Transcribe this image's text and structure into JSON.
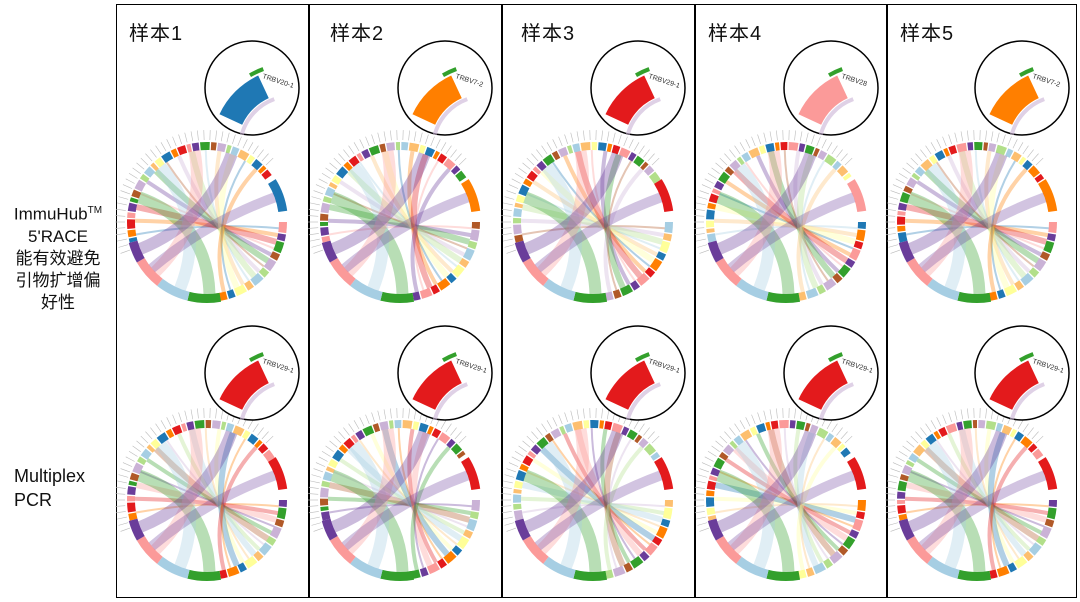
{
  "panels": [
    {
      "title": "样本1",
      "top_zoom_label": "TRBV20-1",
      "bottom_zoom_label": "TRBV29-1"
    },
    {
      "title": "样本2",
      "top_zoom_label": "TRBV7-2",
      "bottom_zoom_label": "TRBV29-1"
    },
    {
      "title": "样本3",
      "top_zoom_label": "TRBV29-1",
      "bottom_zoom_label": "TRBV29-1"
    },
    {
      "title": "样本4",
      "top_zoom_label": "TRBV28",
      "bottom_zoom_label": "TRBV29-1"
    },
    {
      "title": "样本5",
      "top_zoom_label": "TRBV7-2",
      "bottom_zoom_label": "TRBV29-1"
    }
  ],
  "row_labels": {
    "top_name": "ImmuHub",
    "top_tm": "TM",
    "top_line2": "5'RACE",
    "top_line3": "能有效避免",
    "top_line4": "引物扩增偏",
    "top_line5": "好性",
    "bottom_line1": "Multiplex",
    "bottom_line2": "PCR"
  },
  "colors": {
    "blue": "#1f78b4",
    "orange": "#ff7f00",
    "red": "#e31a1c",
    "pink": "#fb9a99",
    "purple": "#6a3d9a",
    "green": "#33a02c",
    "brown": "#b15928",
    "light_purple": "#cab2d6",
    "light_green": "#b2df8a",
    "light_blue": "#a6cee3",
    "light_orange": "#fdbf6f",
    "yellow": "#ffff99"
  },
  "highlight_segments": {
    "top": [
      "blue",
      "orange",
      "red",
      "pink",
      "orange"
    ],
    "bottom": [
      "red",
      "red",
      "red",
      "red",
      "red"
    ]
  }
}
